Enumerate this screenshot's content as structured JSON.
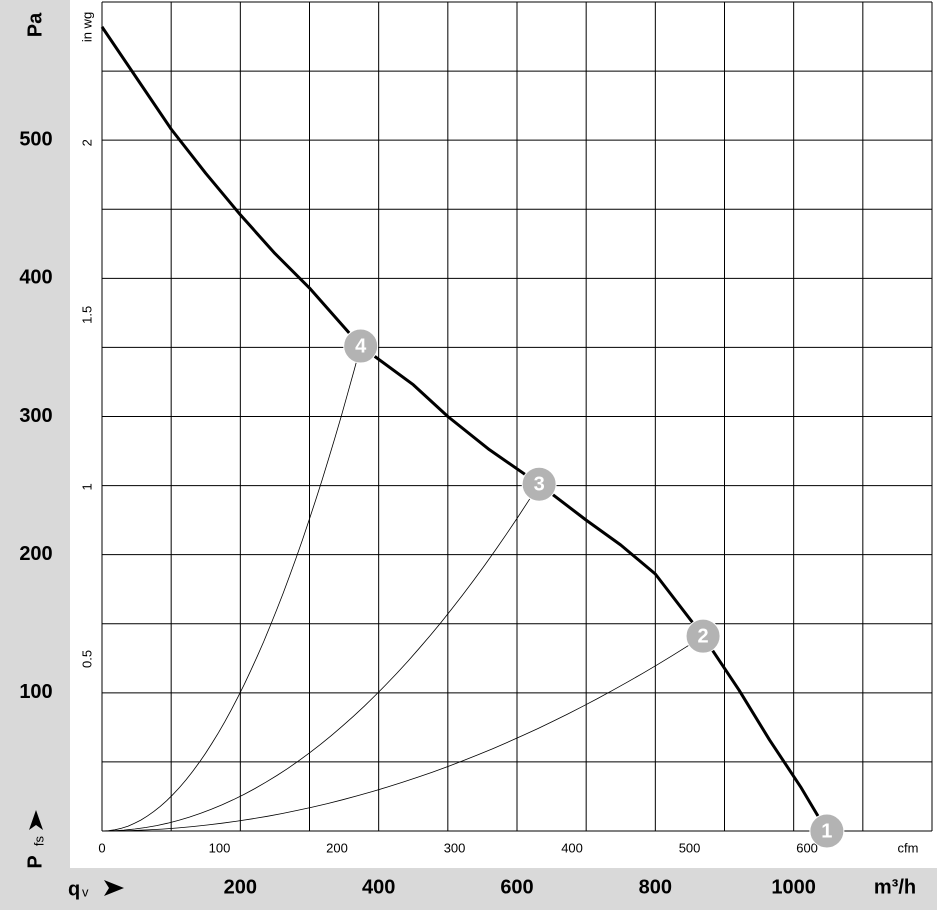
{
  "chart_data": {
    "type": "line",
    "x_unit": "m³/h",
    "y_unit": "Pa",
    "x_quantity": {
      "symbol": "q",
      "subscript": "v"
    },
    "y_quantity": {
      "symbol": "P",
      "subscript": "fs"
    },
    "xlim": [
      0,
      1200
    ],
    "xticks": [
      200,
      400,
      600,
      800,
      1000
    ],
    "xgrid": [
      0,
      100,
      200,
      300,
      400,
      500,
      600,
      700,
      800,
      900,
      1000,
      1100,
      1200
    ],
    "ylim": [
      0,
      600
    ],
    "yticks": [
      100,
      200,
      300,
      400,
      500
    ],
    "ygrid": [
      0,
      50,
      100,
      150,
      200,
      250,
      300,
      350,
      400,
      450,
      500,
      550,
      600
    ],
    "x2_unit": "cfm",
    "x2lim": [
      0,
      706.3
    ],
    "x2ticks": [
      0,
      100,
      200,
      300,
      400,
      500,
      600
    ],
    "y2_unit": "in wg",
    "y2lim": [
      0,
      2.409
    ],
    "y2ticks": [
      0.5,
      1,
      1.5,
      2
    ],
    "x": [
      0,
      50,
      100,
      150,
      200,
      250,
      300,
      374,
      450,
      500,
      560,
      632,
      700,
      750,
      800,
      869,
      921,
      965,
      1010,
      1048
    ],
    "series": [
      {
        "color": "#000000",
        "values": [
          582,
          545,
          508,
          476,
          446,
          418,
          393,
          351,
          323,
          300,
          276,
          251,
          225,
          207,
          186,
          141,
          102,
          66,
          32,
          0
        ]
      }
    ],
    "points": {
      "labels": [
        "1",
        "2",
        "3",
        "4"
      ],
      "x": [
        1048,
        869,
        632,
        374
      ],
      "values": [
        0,
        141,
        251,
        351
      ],
      "color": "#b3b3b3"
    }
  }
}
